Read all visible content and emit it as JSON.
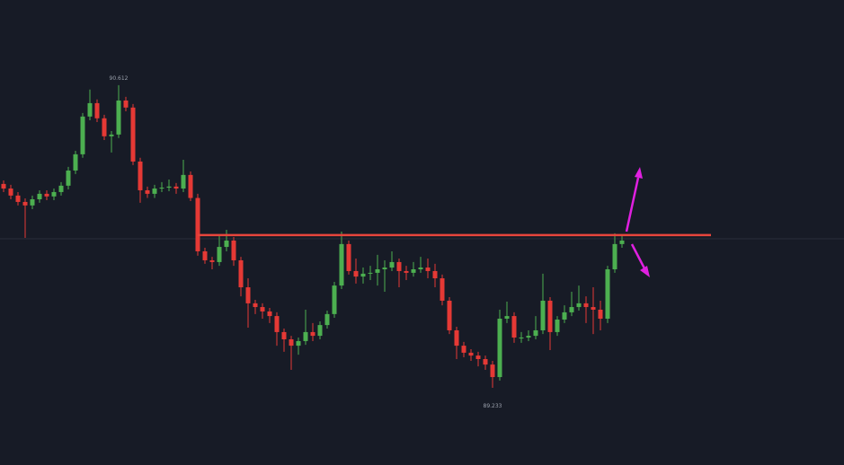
{
  "chart_data": {
    "type": "candlestick",
    "open": [
      90.162,
      90.141,
      90.109,
      90.08,
      90.064,
      90.092,
      90.117,
      90.105,
      90.125,
      90.154,
      90.223,
      90.297,
      90.469,
      90.53,
      90.461,
      90.379,
      90.387,
      90.542,
      90.51,
      90.264,
      90.133,
      90.117,
      90.141,
      90.145,
      90.15,
      90.141,
      90.203,
      90.098,
      89.855,
      89.814,
      89.806,
      89.875,
      89.904,
      89.814,
      89.691,
      89.618,
      89.601,
      89.581,
      89.56,
      89.487,
      89.454,
      89.425,
      89.446,
      89.487,
      89.47,
      89.519,
      89.569,
      89.699,
      89.888,
      89.765,
      89.74,
      89.753,
      89.757,
      89.773,
      89.781,
      89.806,
      89.765,
      89.757,
      89.773,
      89.781,
      89.765,
      89.732,
      89.63,
      89.495,
      89.425,
      89.393,
      89.38,
      89.364,
      89.339,
      89.282,
      89.548,
      89.56,
      89.462,
      89.462,
      89.47,
      89.495,
      89.63,
      89.487,
      89.544,
      89.577,
      89.601,
      89.618,
      89.601,
      89.589,
      89.548,
      89.773,
      89.888
    ],
    "high": [
      90.178,
      90.158,
      90.125,
      90.096,
      90.109,
      90.133,
      90.133,
      90.141,
      90.17,
      90.24,
      90.313,
      90.485,
      90.592,
      90.547,
      90.477,
      90.403,
      90.612,
      90.559,
      90.526,
      90.281,
      90.15,
      90.158,
      90.17,
      90.182,
      90.166,
      90.272,
      90.219,
      90.117,
      89.871,
      89.83,
      89.929,
      89.953,
      89.92,
      89.83,
      89.732,
      89.634,
      89.618,
      89.597,
      89.577,
      89.503,
      89.47,
      89.462,
      89.589,
      89.528,
      89.536,
      89.585,
      89.716,
      89.945,
      89.904,
      89.822,
      89.781,
      89.789,
      89.839,
      89.814,
      89.855,
      89.822,
      89.789,
      89.806,
      89.83,
      89.822,
      89.798,
      89.749,
      89.646,
      89.511,
      89.442,
      89.409,
      89.397,
      89.38,
      89.356,
      89.589,
      89.626,
      89.577,
      89.487,
      89.495,
      89.56,
      89.753,
      89.646,
      89.56,
      89.609,
      89.671,
      89.699,
      89.65,
      89.691,
      89.63,
      89.789,
      89.937,
      89.929
    ],
    "low": [
      90.125,
      90.092,
      90.064,
      89.916,
      90.047,
      90.076,
      90.088,
      90.088,
      90.109,
      90.137,
      90.207,
      90.281,
      90.452,
      90.444,
      90.362,
      90.305,
      90.371,
      90.493,
      90.248,
      90.076,
      90.098,
      90.098,
      90.125,
      90.129,
      90.117,
      90.125,
      90.084,
      89.835,
      89.798,
      89.773,
      89.789,
      89.855,
      89.789,
      89.65,
      89.507,
      89.569,
      89.548,
      89.528,
      89.425,
      89.397,
      89.315,
      89.384,
      89.429,
      89.446,
      89.454,
      89.503,
      89.552,
      89.683,
      89.749,
      89.708,
      89.708,
      89.724,
      89.699,
      89.671,
      89.765,
      89.691,
      89.724,
      89.74,
      89.757,
      89.732,
      89.691,
      89.609,
      89.478,
      89.364,
      89.372,
      89.356,
      89.331,
      89.315,
      89.233,
      89.266,
      89.528,
      89.438,
      89.438,
      89.446,
      89.454,
      89.478,
      89.405,
      89.47,
      89.528,
      89.56,
      89.585,
      89.528,
      89.478,
      89.495,
      89.528,
      89.757,
      89.871
    ],
    "close": [
      90.141,
      90.109,
      90.08,
      90.064,
      90.092,
      90.117,
      90.105,
      90.125,
      90.154,
      90.223,
      90.297,
      90.469,
      90.53,
      90.461,
      90.379,
      90.387,
      90.542,
      90.51,
      90.264,
      90.133,
      90.117,
      90.141,
      90.145,
      90.15,
      90.141,
      90.203,
      90.098,
      89.855,
      89.814,
      89.806,
      89.875,
      89.904,
      89.814,
      89.691,
      89.618,
      89.601,
      89.581,
      89.56,
      89.487,
      89.454,
      89.425,
      89.446,
      89.487,
      89.47,
      89.519,
      89.569,
      89.699,
      89.888,
      89.765,
      89.74,
      89.753,
      89.757,
      89.773,
      89.781,
      89.806,
      89.765,
      89.757,
      89.773,
      89.781,
      89.765,
      89.732,
      89.63,
      89.495,
      89.425,
      89.393,
      89.38,
      89.364,
      89.339,
      89.282,
      89.548,
      89.56,
      89.462,
      89.462,
      89.47,
      89.495,
      89.63,
      89.487,
      89.544,
      89.577,
      89.601,
      89.618,
      89.601,
      89.589,
      89.548,
      89.773,
      89.888,
      89.904
    ],
    "up_color": "#4caf50",
    "down_color": "#e53935",
    "ylim": [
      89.0,
      91.0
    ],
    "max_label": 90.612,
    "min_label": 89.233,
    "level": 89.929,
    "level_color": "#e8453c"
  }
}
